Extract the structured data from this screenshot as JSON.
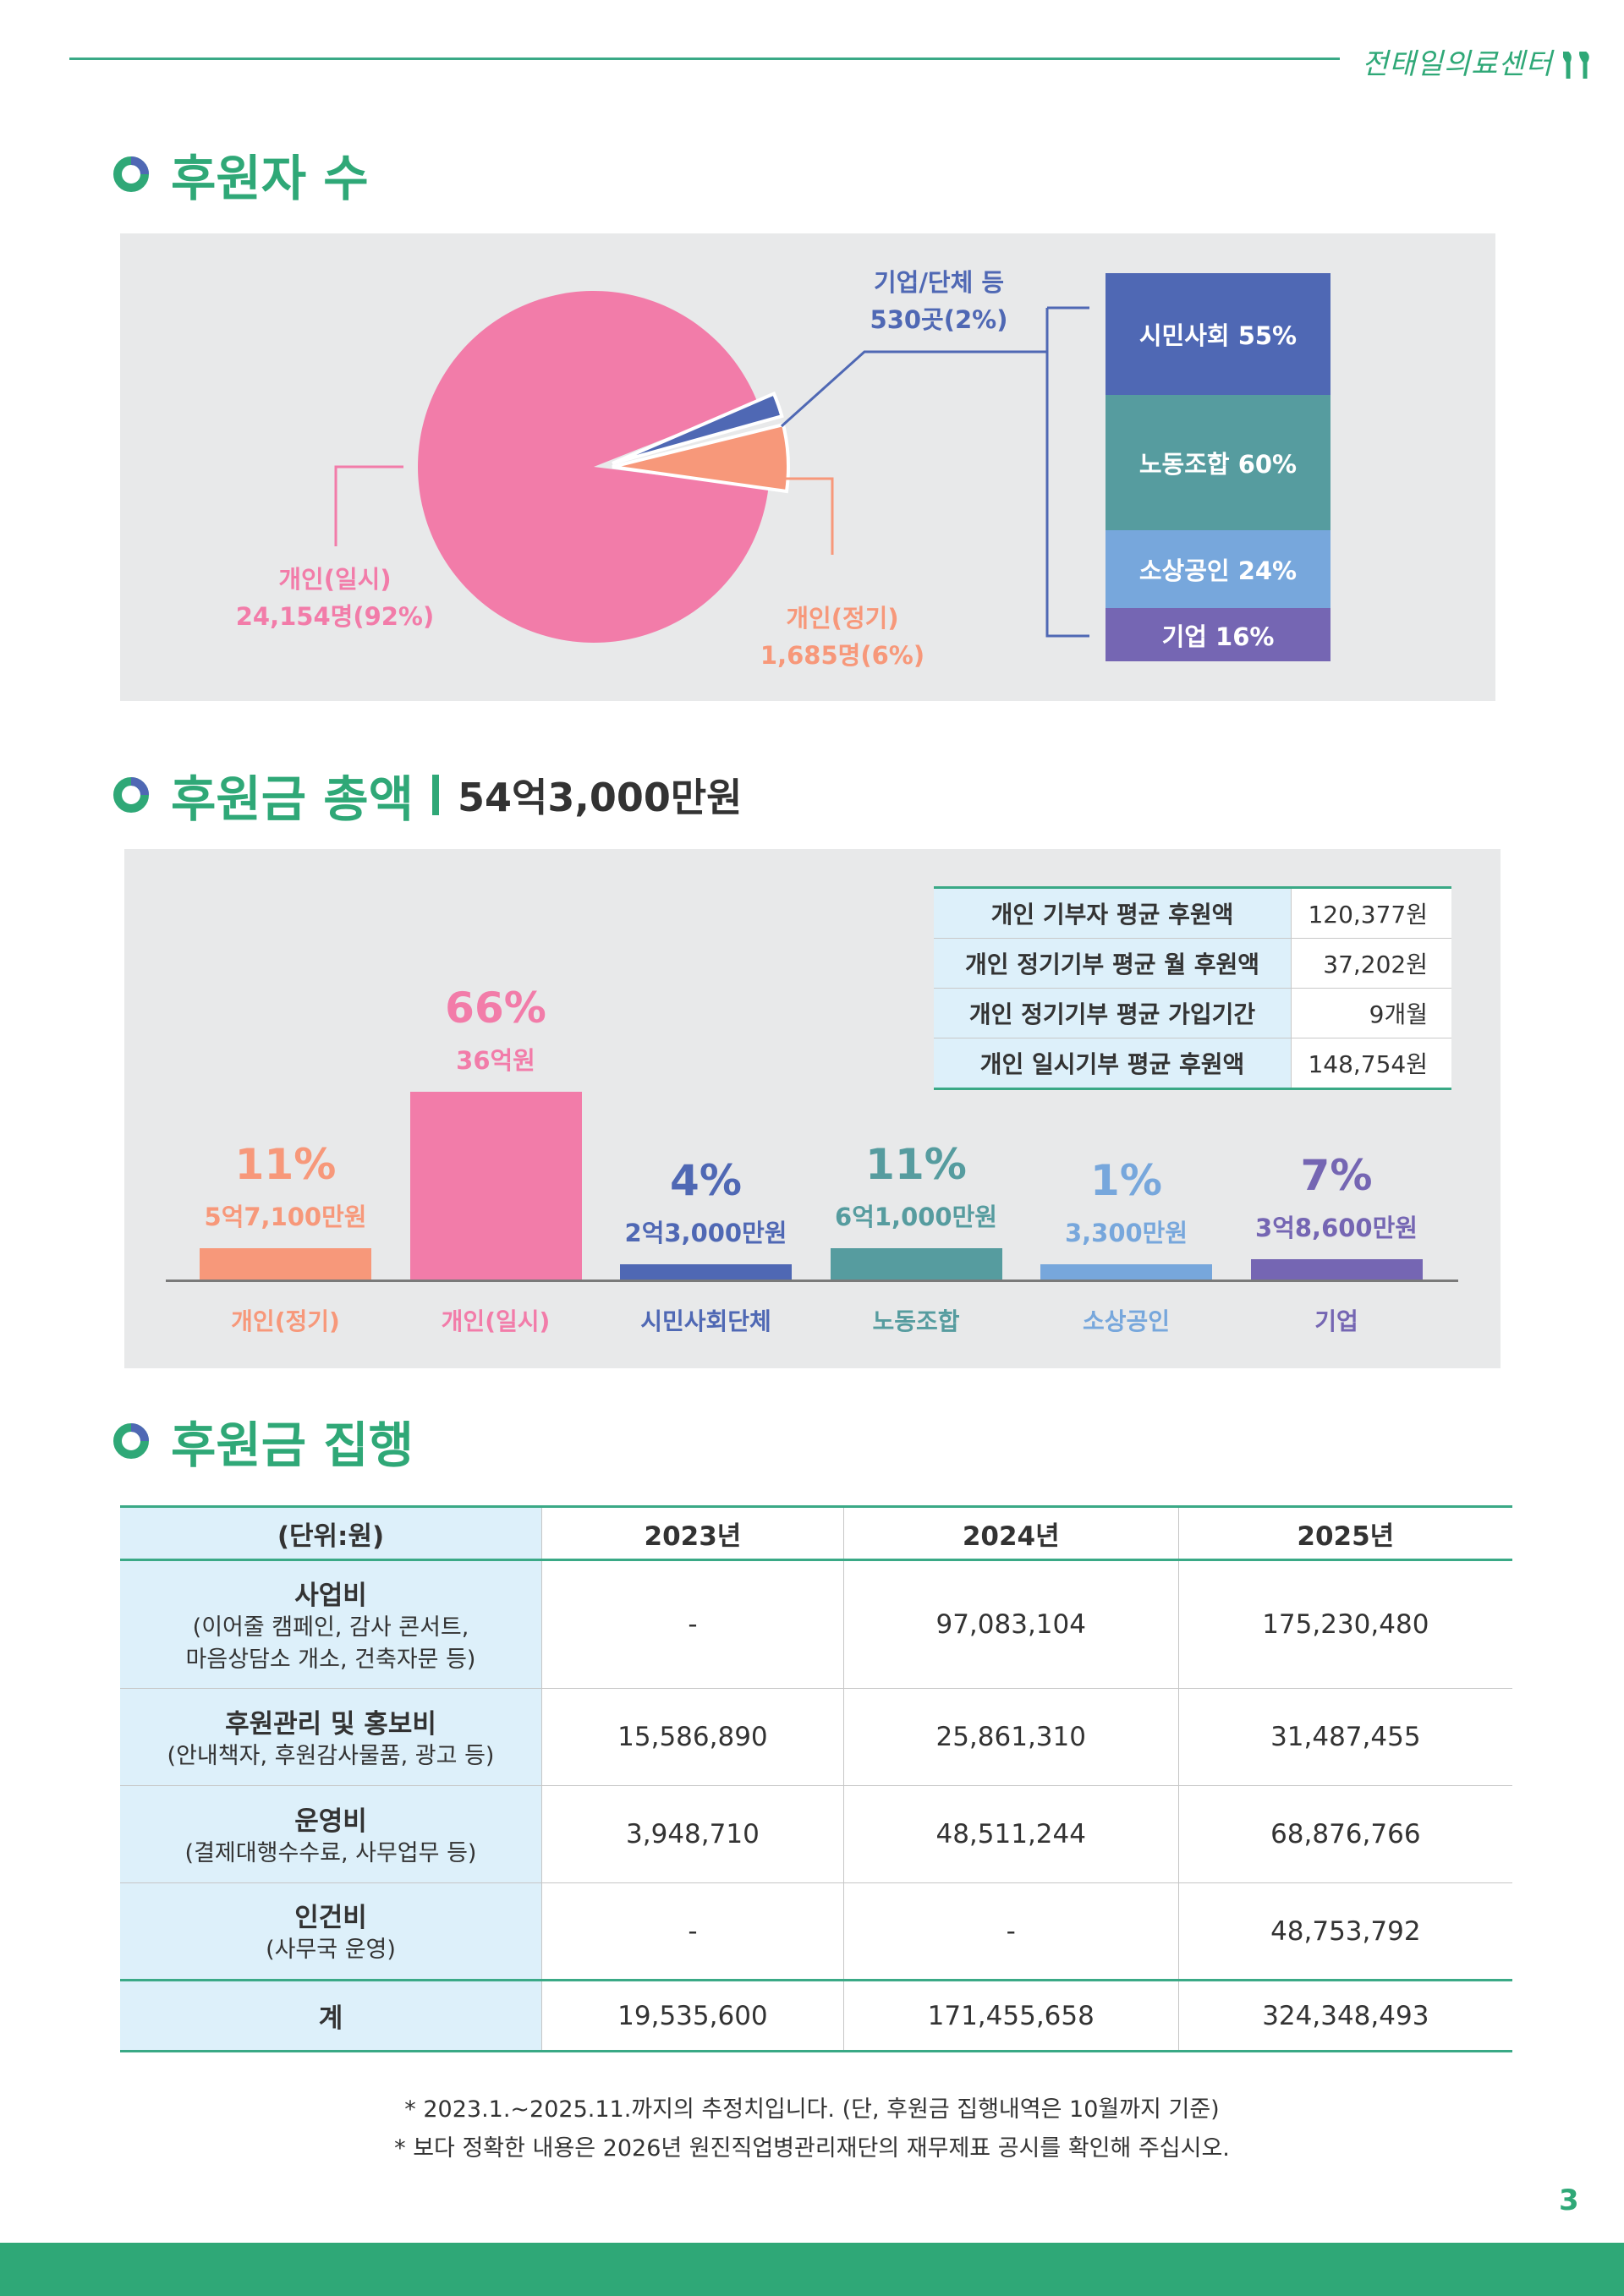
{
  "header": {
    "logo_text": "전태일의료센터"
  },
  "section1": {
    "title": "후원자 수",
    "pie_labels": {
      "individual_once": {
        "name": "개인(일시)",
        "value": "24,154명(92%)"
      },
      "individual_regular": {
        "name": "개인(정기)",
        "value": "1,685명(6%)"
      },
      "org": {
        "name": "기업/단체 등",
        "value": "530곳(2%)"
      }
    },
    "stack": [
      {
        "label": "시민사회 55%",
        "color": "#4f68b4"
      },
      {
        "label": "노동조합 60%",
        "color": "#569c9f"
      },
      {
        "label": "소상공인 24%",
        "color": "#77a7dc"
      },
      {
        "label": "기업 16%",
        "color": "#7566b3"
      }
    ]
  },
  "section2": {
    "title": "후원금 총액",
    "total": "54억3,000만원",
    "avg_table": [
      {
        "k": "개인 기부자 평균 후원액",
        "v": "120,377원"
      },
      {
        "k": "개인 정기기부 평균 월 후원액",
        "v": "37,202원"
      },
      {
        "k": "개인 정기기부 평균 가입기간",
        "v": "9개월"
      },
      {
        "k": "개인 일시기부 평균 후원액",
        "v": "148,754원"
      }
    ]
  },
  "chart_data": {
    "type": "bar",
    "categories": [
      "개인(정기)",
      "개인(일시)",
      "시민사회단체",
      "노동조합",
      "소상공인",
      "기업"
    ],
    "values": [
      11,
      66,
      4,
      11,
      1,
      7
    ],
    "percent_labels": [
      "11%",
      "66%",
      "4%",
      "11%",
      "1%",
      "7%"
    ],
    "amount_labels": [
      "5억7,100만원",
      "36억원",
      "2억3,000만원",
      "6억1,000만원",
      "3,300만원",
      "3억8,600만원"
    ],
    "colors": [
      "#f7987a",
      "#f27ca9",
      "#4f68b4",
      "#569c9f",
      "#77a7dc",
      "#7566b3"
    ],
    "title": "",
    "xlabel": "",
    "ylabel": ""
  },
  "pie_data": {
    "type": "pie",
    "slices": [
      {
        "name": "개인(일시)",
        "value": 92,
        "color": "#f27ca9"
      },
      {
        "name": "개인(정기)",
        "value": 6,
        "color": "#f7987a"
      },
      {
        "name": "기업/단체 등",
        "value": 2,
        "color": "#4f68b4"
      }
    ]
  },
  "section3": {
    "title": "후원금 집행",
    "headers": [
      "(단위:원)",
      "2023년",
      "2024년",
      "2025년"
    ],
    "rows": [
      {
        "title": "사업비",
        "sub1": "(이어줄 캠페인, 감사 콘서트,",
        "sub2": "마음상담소 개소, 건축자문 등)",
        "v": [
          "-",
          "97,083,104",
          "175,230,480"
        ]
      },
      {
        "title": "후원관리 및 홍보비",
        "sub1": "(안내책자, 후원감사물품, 광고 등)",
        "sub2": "",
        "v": [
          "15,586,890",
          "25,861,310",
          "31,487,455"
        ]
      },
      {
        "title": "운영비",
        "sub1": "(결제대행수수료, 사무업무 등)",
        "sub2": "",
        "v": [
          "3,948,710",
          "48,511,244",
          "68,876,766"
        ]
      },
      {
        "title": "인건비",
        "sub1": "(사무국 운영)",
        "sub2": "",
        "v": [
          "-",
          "-",
          "48,753,792"
        ]
      }
    ],
    "total": {
      "title": "계",
      "v": [
        "19,535,600",
        "171,455,658",
        "324,348,493"
      ]
    }
  },
  "notes": [
    "* 2023.1.~2025.11.까지의 추정치입니다. (단, 후원금 집행내역은 10월까지 기준)",
    "* 보다 정확한 내용은 2026년 원진직업병관리재단의 재무제표 공시를 확인해 주십시오."
  ],
  "page_number": "3"
}
